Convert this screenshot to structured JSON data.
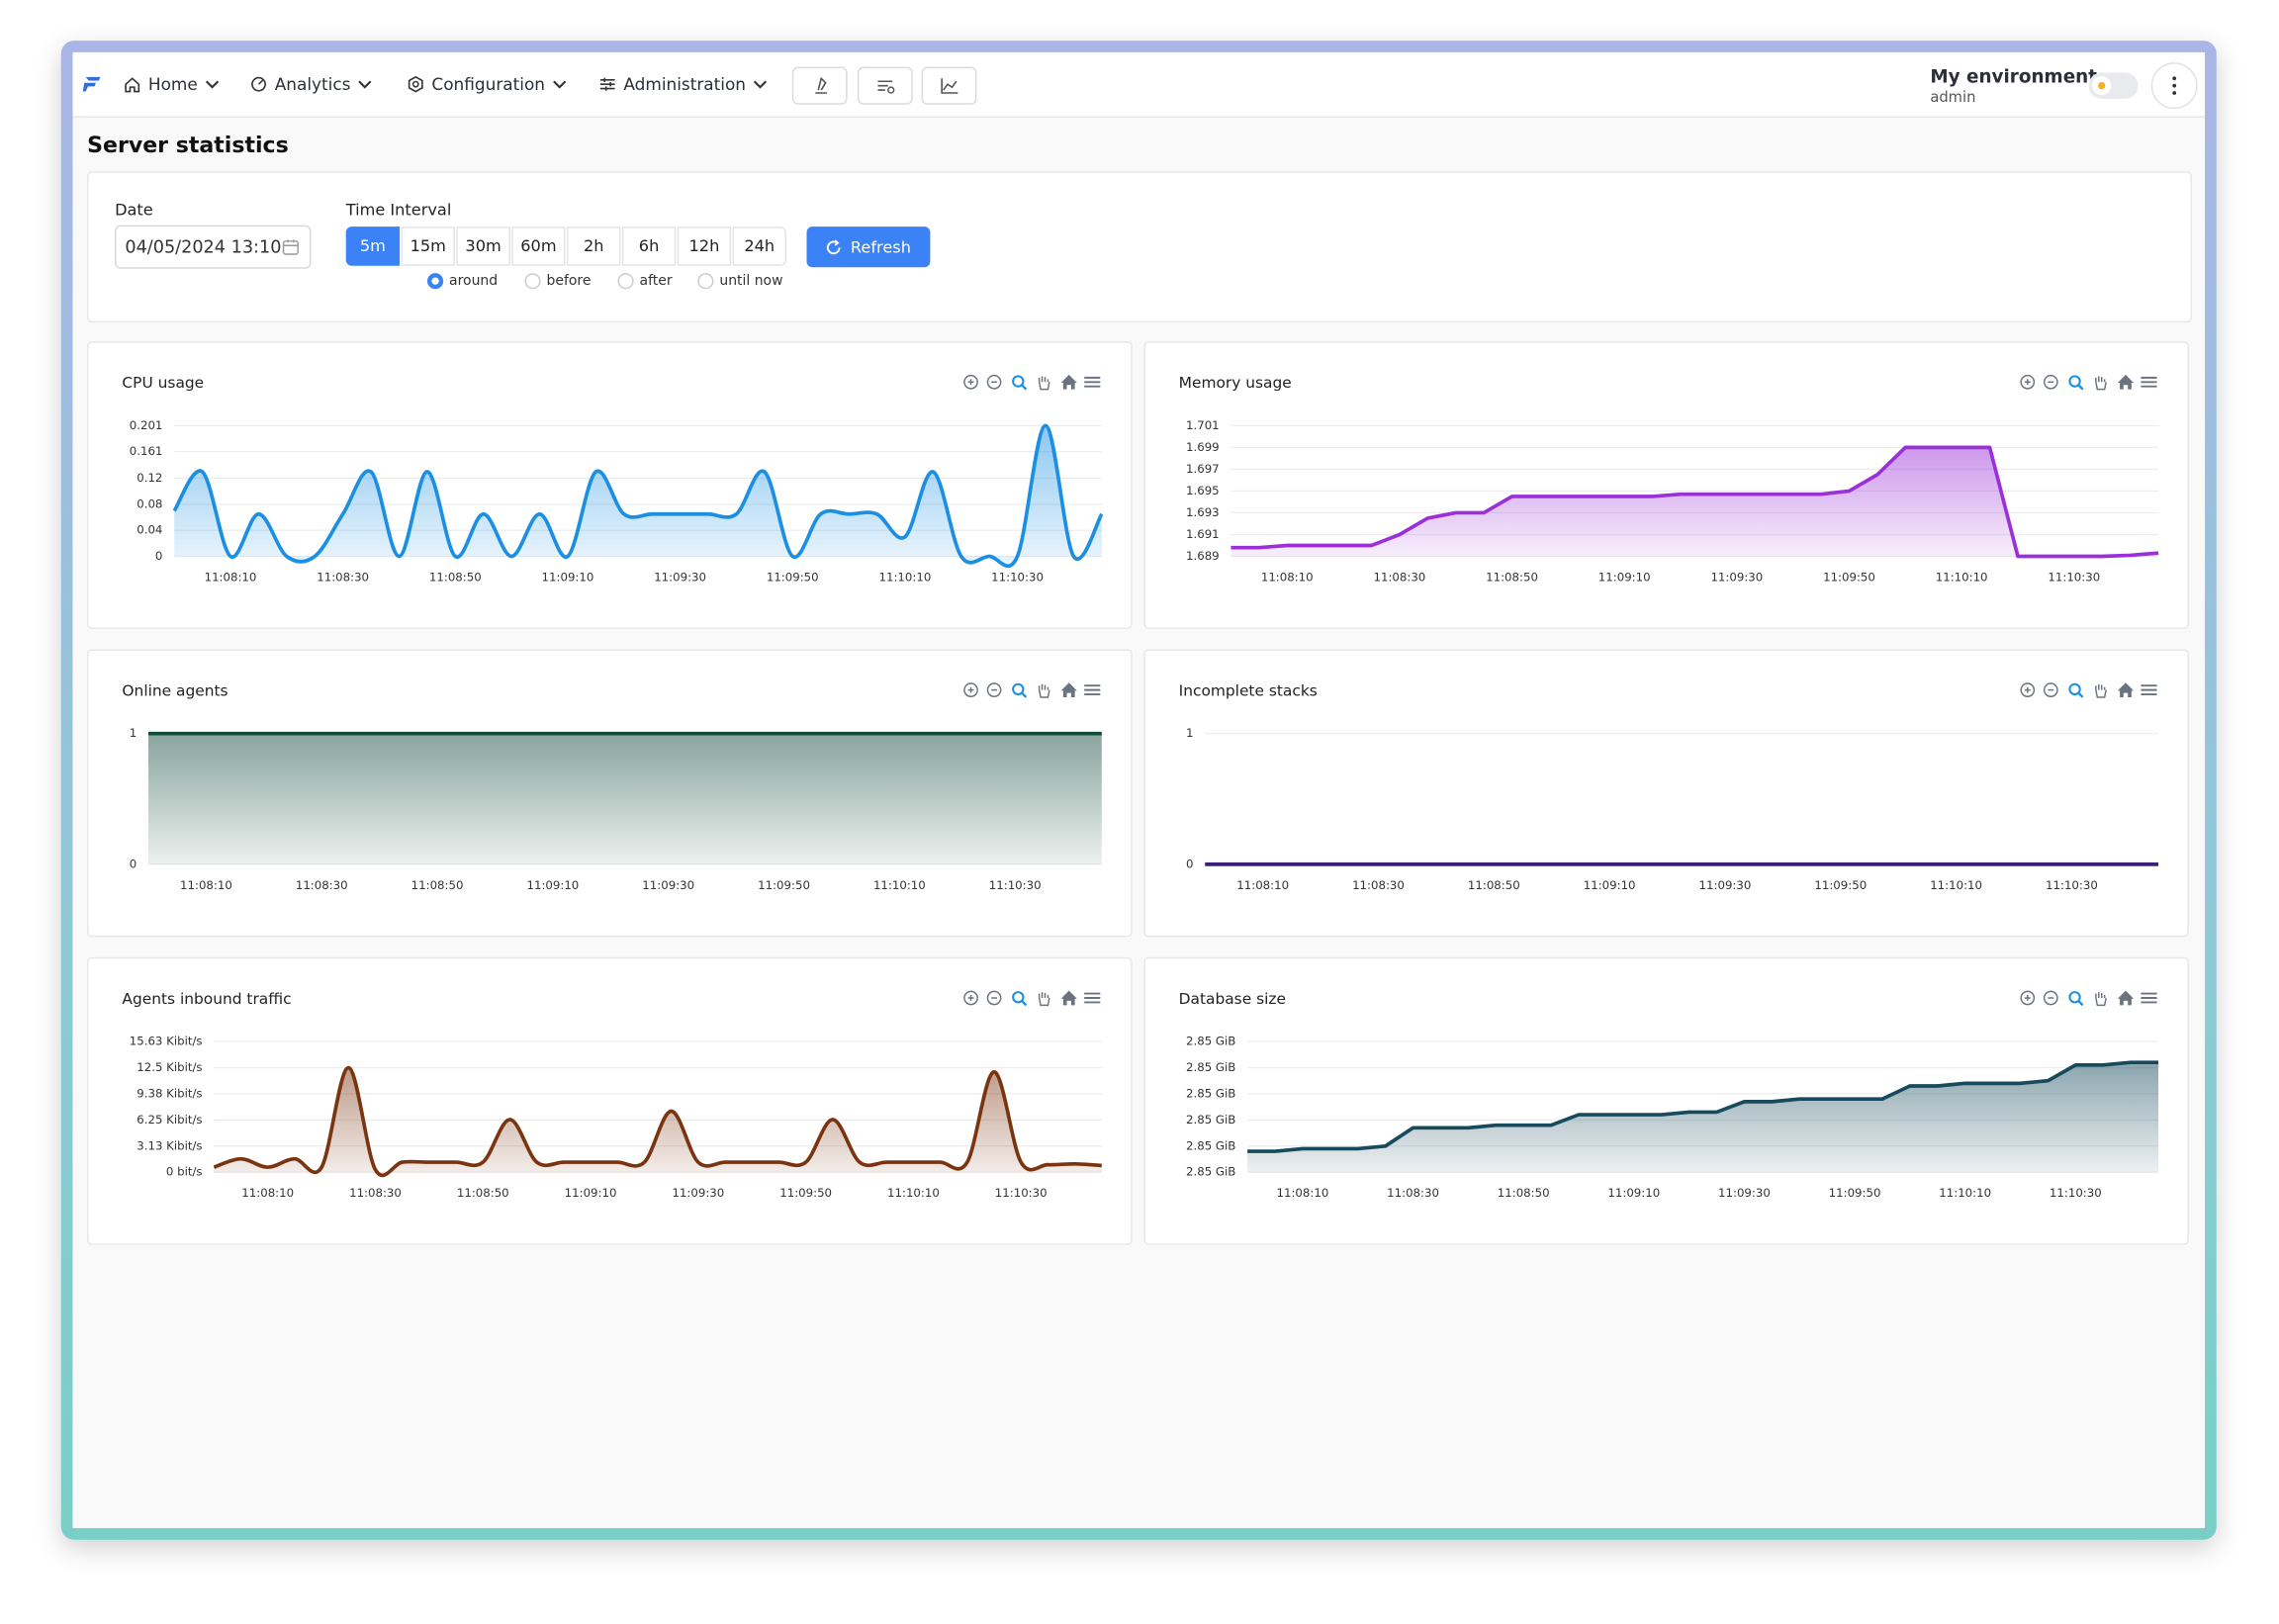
{
  "nav": {
    "items": [
      "Home",
      "Analytics",
      "Configuration",
      "Administration"
    ],
    "environment": "My environment",
    "user": "admin"
  },
  "page_title": "Server statistics",
  "filters": {
    "date_label": "Date",
    "date_value": "04/05/2024 13:10",
    "interval_label": "Time Interval",
    "intervals": [
      "5m",
      "15m",
      "30m",
      "60m",
      "2h",
      "6h",
      "12h",
      "24h"
    ],
    "selected_interval": "5m",
    "modes": [
      "around",
      "before",
      "after",
      "until now"
    ],
    "selected_mode": "around",
    "refresh": "Refresh"
  },
  "chart_data": [
    {
      "type": "area",
      "title": "CPU usage",
      "color": "#1a8fe3",
      "smooth": true,
      "x": [
        "11:08:00",
        "11:08:05",
        "11:08:10",
        "11:08:15",
        "11:08:20",
        "11:08:25",
        "11:08:30",
        "11:08:35",
        "11:08:40",
        "11:08:45",
        "11:08:50",
        "11:08:55",
        "11:09:00",
        "11:09:05",
        "11:09:10",
        "11:09:15",
        "11:09:20",
        "11:09:25",
        "11:09:30",
        "11:09:35",
        "11:09:40",
        "11:09:45",
        "11:09:50",
        "11:09:55",
        "11:10:00",
        "11:10:05",
        "11:10:10",
        "11:10:15",
        "11:10:20",
        "11:10:25",
        "11:10:30",
        "11:10:35",
        "11:10:40",
        "11:10:45"
      ],
      "xticks": [
        "11:08:10",
        "11:08:30",
        "11:08:50",
        "11:09:10",
        "11:09:30",
        "11:09:50",
        "11:10:10",
        "11:10:30"
      ],
      "values": [
        0.07,
        0.13,
        0,
        0.065,
        0,
        0,
        0.065,
        0.13,
        0,
        0.13,
        0,
        0.065,
        0,
        0.065,
        0,
        0.13,
        0.065,
        0.065,
        0.065,
        0.065,
        0.065,
        0.13,
        0,
        0.065,
        0.065,
        0.065,
        0.03,
        0.13,
        0,
        0,
        0,
        0.201,
        0,
        0.065
      ],
      "ylim": [
        0,
        0.201
      ],
      "yticks": [
        0,
        0.04,
        0.08,
        0.12,
        0.161,
        0.201
      ],
      "grid": true
    },
    {
      "type": "area",
      "title": "Memory usage",
      "color": "#9b30d9",
      "smooth": false,
      "x": [
        "11:08:00",
        "11:08:05",
        "11:08:10",
        "11:08:15",
        "11:08:20",
        "11:08:25",
        "11:08:30",
        "11:08:35",
        "11:08:40",
        "11:08:45",
        "11:08:50",
        "11:08:55",
        "11:09:00",
        "11:09:05",
        "11:09:10",
        "11:09:15",
        "11:09:20",
        "11:09:25",
        "11:09:30",
        "11:09:35",
        "11:09:40",
        "11:09:45",
        "11:09:50",
        "11:09:55",
        "11:10:00",
        "11:10:05",
        "11:10:10",
        "11:10:15",
        "11:10:20",
        "11:10:25",
        "11:10:30",
        "11:10:35",
        "11:10:40",
        "11:10:45"
      ],
      "xticks": [
        "11:08:10",
        "11:08:30",
        "11:08:50",
        "11:09:10",
        "11:09:30",
        "11:09:50",
        "11:10:10",
        "11:10:30"
      ],
      "values": [
        1.6898,
        1.6898,
        1.69,
        1.69,
        1.69,
        1.69,
        1.691,
        1.6925,
        1.693,
        1.693,
        1.6945,
        1.6945,
        1.6945,
        1.6945,
        1.6945,
        1.6945,
        1.6947,
        1.6947,
        1.6947,
        1.6947,
        1.6947,
        1.6947,
        1.695,
        1.6965,
        1.699,
        1.699,
        1.699,
        1.699,
        1.689,
        1.689,
        1.689,
        1.689,
        1.6891,
        1.6893
      ],
      "ylim": [
        1.689,
        1.701
      ],
      "yticks": [
        1.689,
        1.691,
        1.693,
        1.695,
        1.697,
        1.699,
        1.701
      ],
      "grid": true
    },
    {
      "type": "area",
      "title": "Online agents",
      "color": "#124a3a",
      "smooth": false,
      "x": [
        "11:08:00",
        "11:08:05",
        "11:08:10",
        "11:08:15",
        "11:08:20",
        "11:08:25",
        "11:08:30",
        "11:08:35",
        "11:08:40",
        "11:08:45",
        "11:08:50",
        "11:08:55",
        "11:09:00",
        "11:09:05",
        "11:09:10",
        "11:09:15",
        "11:09:20",
        "11:09:25",
        "11:09:30",
        "11:09:35",
        "11:09:40",
        "11:09:45",
        "11:09:50",
        "11:09:55",
        "11:10:00",
        "11:10:05",
        "11:10:10",
        "11:10:15",
        "11:10:20",
        "11:10:25",
        "11:10:30",
        "11:10:35",
        "11:10:40",
        "11:10:45"
      ],
      "xticks": [
        "11:08:10",
        "11:08:30",
        "11:08:50",
        "11:09:10",
        "11:09:30",
        "11:09:50",
        "11:10:10",
        "11:10:30"
      ],
      "values": [
        1,
        1,
        1,
        1,
        1,
        1,
        1,
        1,
        1,
        1,
        1,
        1,
        1,
        1,
        1,
        1,
        1,
        1,
        1,
        1,
        1,
        1,
        1,
        1,
        1,
        1,
        1,
        1,
        1,
        1,
        1,
        1,
        1,
        1
      ],
      "ylim": [
        0,
        1
      ],
      "yticks": [
        0,
        1
      ],
      "grid": true
    },
    {
      "type": "area",
      "title": "Incomplete stacks",
      "color": "#3b1f7a",
      "smooth": false,
      "x": [
        "11:08:00",
        "11:08:05",
        "11:08:10",
        "11:08:15",
        "11:08:20",
        "11:08:25",
        "11:08:30",
        "11:08:35",
        "11:08:40",
        "11:08:45",
        "11:08:50",
        "11:08:55",
        "11:09:00",
        "11:09:05",
        "11:09:10",
        "11:09:15",
        "11:09:20",
        "11:09:25",
        "11:09:30",
        "11:09:35",
        "11:09:40",
        "11:09:45",
        "11:09:50",
        "11:09:55",
        "11:10:00",
        "11:10:05",
        "11:10:10",
        "11:10:15",
        "11:10:20",
        "11:10:25",
        "11:10:30",
        "11:10:35",
        "11:10:40",
        "11:10:45"
      ],
      "xticks": [
        "11:08:10",
        "11:08:30",
        "11:08:50",
        "11:09:10",
        "11:09:30",
        "11:09:50",
        "11:10:10",
        "11:10:30"
      ],
      "values": [
        0,
        0,
        0,
        0,
        0,
        0,
        0,
        0,
        0,
        0,
        0,
        0,
        0,
        0,
        0,
        0,
        0,
        0,
        0,
        0,
        0,
        0,
        0,
        0,
        0,
        0,
        0,
        0,
        0,
        0,
        0,
        0,
        0,
        0
      ],
      "ylim": [
        0,
        1
      ],
      "yticks": [
        0,
        1
      ],
      "grid": true
    },
    {
      "type": "area",
      "title": "Agents inbound traffic",
      "color": "#7a3510",
      "smooth": true,
      "x": [
        "11:08:00",
        "11:08:05",
        "11:08:10",
        "11:08:15",
        "11:08:20",
        "11:08:25",
        "11:08:30",
        "11:08:35",
        "11:08:40",
        "11:08:45",
        "11:08:50",
        "11:08:55",
        "11:09:00",
        "11:09:05",
        "11:09:10",
        "11:09:15",
        "11:09:20",
        "11:09:25",
        "11:09:30",
        "11:09:35",
        "11:09:40",
        "11:09:45",
        "11:09:50",
        "11:09:55",
        "11:10:00",
        "11:10:05",
        "11:10:10",
        "11:10:15",
        "11:10:20",
        "11:10:25",
        "11:10:30",
        "11:10:35",
        "11:10:40",
        "11:10:45"
      ],
      "xticks": [
        "11:08:10",
        "11:08:30",
        "11:08:50",
        "11:09:10",
        "11:09:30",
        "11:09:50",
        "11:10:10",
        "11:10:30"
      ],
      "values": [
        0.6,
        1.6,
        0.6,
        1.6,
        0.6,
        12.5,
        0.3,
        1.2,
        1.2,
        1.2,
        1.2,
        6.3,
        1.2,
        1.2,
        1.2,
        1.2,
        1.2,
        7.3,
        1.2,
        1.2,
        1.2,
        1.2,
        1.2,
        6.3,
        1.2,
        1.2,
        1.2,
        1.2,
        1.2,
        12.0,
        1.2,
        0.9,
        1.0,
        0.8
      ],
      "ylim": [
        0,
        15.63
      ],
      "yticks": [
        {
          "value": 0,
          "label": "0 bit/s"
        },
        {
          "value": 3.13,
          "label": "3.13 Kibit/s"
        },
        {
          "value": 6.25,
          "label": "6.25 Kibit/s"
        },
        {
          "value": 9.38,
          "label": "9.38 Kibit/s"
        },
        {
          "value": 12.5,
          "label": "12.5 Kibit/s"
        },
        {
          "value": 15.63,
          "label": "15.63 Kibit/s"
        }
      ],
      "grid": true
    },
    {
      "type": "area",
      "title": "Database size",
      "color": "#174a5c",
      "smooth": false,
      "x": [
        "11:08:00",
        "11:08:05",
        "11:08:10",
        "11:08:15",
        "11:08:20",
        "11:08:25",
        "11:08:30",
        "11:08:35",
        "11:08:40",
        "11:08:45",
        "11:08:50",
        "11:08:55",
        "11:09:00",
        "11:09:05",
        "11:09:10",
        "11:09:15",
        "11:09:20",
        "11:09:25",
        "11:09:30",
        "11:09:35",
        "11:09:40",
        "11:09:45",
        "11:09:50",
        "11:09:55",
        "11:10:00",
        "11:10:05",
        "11:10:10",
        "11:10:15",
        "11:10:20",
        "11:10:25",
        "11:10:30",
        "11:10:35",
        "11:10:40",
        "11:10:45"
      ],
      "xticks": [
        "11:08:10",
        "11:08:30",
        "11:08:50",
        "11:09:10",
        "11:09:30",
        "11:09:50",
        "11:10:10",
        "11:10:30"
      ],
      "values": [
        2.8488,
        2.8488,
        2.8489,
        2.8489,
        2.8489,
        2.849,
        2.8497,
        2.8497,
        2.8497,
        2.8498,
        2.8498,
        2.8498,
        2.8502,
        2.8502,
        2.8502,
        2.8502,
        2.8503,
        2.8503,
        2.8507,
        2.8507,
        2.8508,
        2.8508,
        2.8508,
        2.8508,
        2.8513,
        2.8513,
        2.8514,
        2.8514,
        2.8514,
        2.8515,
        2.8521,
        2.8521,
        2.8522,
        2.8522
      ],
      "ylim": [
        2.848,
        2.853
      ],
      "yticks": [
        {
          "value": 2.848,
          "label": "2.85 GiB"
        },
        {
          "value": 2.849,
          "label": "2.85 GiB"
        },
        {
          "value": 2.85,
          "label": "2.85 GiB"
        },
        {
          "value": 2.851,
          "label": "2.85 GiB"
        },
        {
          "value": 2.852,
          "label": "2.85 GiB"
        },
        {
          "value": 2.853,
          "label": "2.85 GiB"
        }
      ],
      "grid": true
    }
  ]
}
